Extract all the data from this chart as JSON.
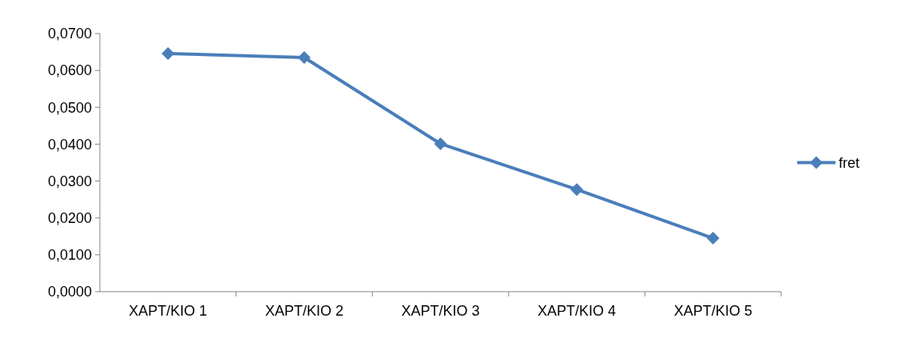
{
  "chart_data": {
    "type": "line",
    "categories": [
      "ΧΑΡΤ/ΚΙΟ 1",
      "ΧΑΡΤ/ΚΙΟ 2",
      "ΧΑΡΤ/ΚΙΟ 3",
      "ΧΑΡΤ/ΚΙΟ 4",
      "ΧΑΡΤ/ΚΙΟ 5"
    ],
    "series": [
      {
        "name": "fret",
        "color": "#4a7ebb",
        "values": [
          0.0646,
          0.0635,
          0.0401,
          0.0277,
          0.0145
        ]
      }
    ],
    "ylim": [
      0,
      0.07
    ],
    "yticks": [
      {
        "value": 0,
        "label": "0,0000"
      },
      {
        "value": 0.01,
        "label": "0,0100"
      },
      {
        "value": 0.02,
        "label": "0,0200"
      },
      {
        "value": 0.03,
        "label": "0,0300"
      },
      {
        "value": 0.04,
        "label": "0,0400"
      },
      {
        "value": 0.05,
        "label": "0,0500"
      },
      {
        "value": 0.06,
        "label": "0,0600"
      },
      {
        "value": 0.07,
        "label": "0,0700"
      }
    ],
    "marker": "diamond",
    "legend": "right",
    "grid": false
  }
}
